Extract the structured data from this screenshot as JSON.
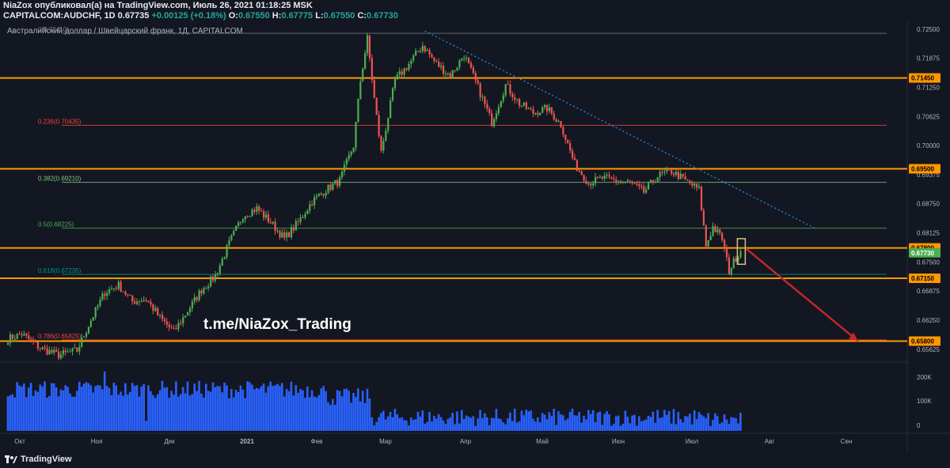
{
  "header": {
    "line1": "NiaZox опубликовал(а) на TradingView.com, Июль 26, 2021 01:18:25 MSK",
    "symbol": "CAPITALCOM:AUDCHF, 1D",
    "open": "0.67735",
    "change": "+0.00125 (+0.18%)",
    "ohlc_o_label": "O:",
    "ohlc_o": "0.67550",
    "ohlc_h_label": "H:",
    "ohlc_h": "0.67775",
    "ohlc_l_label": "L:",
    "ohlc_l": "0.67550",
    "ohlc_c_label": "C:",
    "ohlc_c": "0.67730"
  },
  "chart_title": "Австралийский доллар / Швейцарский франк, 1Д, CAPITALCOM",
  "watermark": "t.me/NiaZox_Trading",
  "footer": {
    "brand": "TradingView"
  },
  "colors": {
    "background": "#131722",
    "up": "#4caf50",
    "down": "#ef5350",
    "level": "#ff9800",
    "trendline": "#2196f3",
    "arrow": "#c62828",
    "volume": "#2962ff",
    "last_price": "#4caf50"
  },
  "chart_data": {
    "type": "candlestick",
    "ylim": [
      0.6535,
      0.7265
    ],
    "y_ticks": [
      "0.72500",
      "0.71875",
      "0.71250",
      "0.70625",
      "0.70000",
      "0.69375",
      "0.68750",
      "0.68125",
      "0.67500",
      "0.66875",
      "0.66250",
      "0.65625"
    ],
    "x_ticks": [
      "Окт",
      "Ноя",
      "Дек",
      "2021",
      "Фев",
      "Мар",
      "Апр",
      "Май",
      "Июн",
      "Июл",
      "Авг",
      "Сен"
    ],
    "price_labels": [
      {
        "price": 0.7145,
        "label": "0.71450",
        "kind": "level"
      },
      {
        "price": 0.695,
        "label": "0.69500",
        "kind": "level"
      },
      {
        "price": 0.678,
        "label": "0.67800",
        "kind": "level"
      },
      {
        "price": 0.6773,
        "label": "0.67730",
        "kind": "last"
      },
      {
        "price": 0.6715,
        "label": "0.67150",
        "kind": "level"
      },
      {
        "price": 0.658,
        "label": "0.65800",
        "kind": "level"
      }
    ],
    "horizontal_levels": [
      0.7145,
      0.695,
      0.678,
      0.6715,
      0.658
    ],
    "fibonacci": [
      {
        "ratio": "0",
        "price": 0.7241,
        "label": "0(0.72410)",
        "color": "#787b86"
      },
      {
        "ratio": "0.236",
        "price": 0.70435,
        "label": "0.236(0.70435)",
        "color": "#f44336"
      },
      {
        "ratio": "0.382",
        "price": 0.6921,
        "label": "0.382(0.69210)",
        "color": "#81c784"
      },
      {
        "ratio": "0.5",
        "price": 0.68225,
        "label": "0.5(0.68225)",
        "color": "#4caf50"
      },
      {
        "ratio": "0.618",
        "price": 0.67235,
        "label": "0.618(0.67235)",
        "color": "#009688"
      },
      {
        "ratio": "0.786",
        "price": 0.65825,
        "label": "0.786(0.65825)",
        "color": "#f44336"
      }
    ],
    "trendline": {
      "start": {
        "month": "Мар",
        "price": 0.7246
      },
      "end": {
        "month": "Авг",
        "price": 0.6822
      }
    },
    "projection_arrow": {
      "from": 0.678,
      "to": 0.658
    },
    "volume_ticks": [
      "200K",
      "100K",
      "0"
    ],
    "path_waypoints": [
      [
        0,
        0.6585
      ],
      [
        6,
        0.6595
      ],
      [
        14,
        0.6565
      ],
      [
        22,
        0.655
      ],
      [
        30,
        0.656
      ],
      [
        36,
        0.6625
      ],
      [
        42,
        0.6685
      ],
      [
        48,
        0.67
      ],
      [
        54,
        0.6665
      ],
      [
        60,
        0.667
      ],
      [
        66,
        0.663
      ],
      [
        72,
        0.66
      ],
      [
        78,
        0.6645
      ],
      [
        84,
        0.669
      ],
      [
        90,
        0.672
      ],
      [
        96,
        0.679
      ],
      [
        102,
        0.685
      ],
      [
        108,
        0.6865
      ],
      [
        114,
        0.6835
      ],
      [
        120,
        0.68
      ],
      [
        126,
        0.6835
      ],
      [
        132,
        0.688
      ],
      [
        138,
        0.6905
      ],
      [
        144,
        0.6925
      ],
      [
        150,
        0.7
      ],
      [
        153,
        0.714
      ],
      [
        156,
        0.723
      ],
      [
        159,
        0.71
      ],
      [
        162,
        0.6985
      ],
      [
        168,
        0.714
      ],
      [
        174,
        0.7175
      ],
      [
        180,
        0.7215
      ],
      [
        186,
        0.7175
      ],
      [
        192,
        0.715
      ],
      [
        198,
        0.7195
      ],
      [
        204,
        0.7125
      ],
      [
        210,
        0.705
      ],
      [
        216,
        0.713
      ],
      [
        222,
        0.709
      ],
      [
        228,
        0.707
      ],
      [
        234,
        0.708
      ],
      [
        240,
        0.7045
      ],
      [
        246,
        0.696
      ],
      [
        252,
        0.692
      ],
      [
        258,
        0.693
      ],
      [
        264,
        0.6925
      ],
      [
        270,
        0.692
      ],
      [
        276,
        0.69
      ],
      [
        282,
        0.6935
      ],
      [
        288,
        0.6945
      ],
      [
        294,
        0.6925
      ],
      [
        300,
        0.6905
      ],
      [
        303,
        0.6785
      ],
      [
        306,
        0.6825
      ],
      [
        310,
        0.68
      ],
      [
        313,
        0.673
      ],
      [
        316,
        0.676
      ],
      [
        318,
        0.6773
      ]
    ]
  }
}
